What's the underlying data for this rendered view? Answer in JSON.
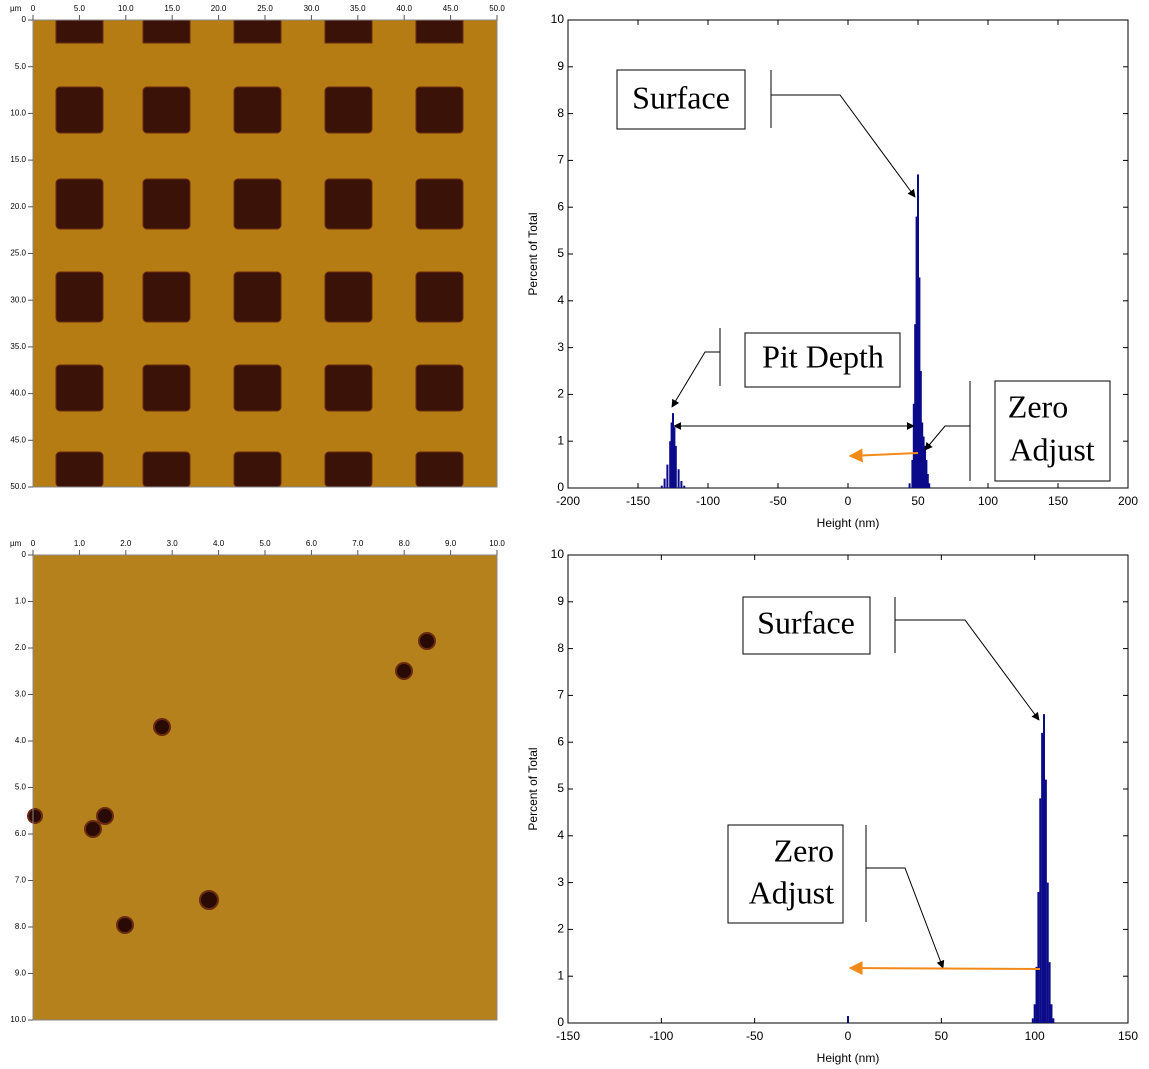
{
  "chart_data": [
    {
      "type": "image",
      "x_unit": "µm",
      "xlim": [
        0,
        50
      ],
      "ylim": [
        0,
        50
      ],
      "y_reversed": true,
      "xticks": [
        0,
        {
          "value": 5,
          "label": "5.0"
        },
        {
          "value": 10,
          "label": "10.0"
        },
        {
          "value": 15,
          "label": "15.0"
        },
        {
          "value": 20,
          "label": "20.0"
        },
        {
          "value": 25,
          "label": "25.0"
        },
        {
          "value": 30,
          "label": "30.0"
        },
        {
          "value": 35,
          "label": "35.0"
        },
        {
          "value": 40,
          "label": "40.0"
        },
        {
          "value": 45,
          "label": "45.0"
        },
        {
          "value": 50,
          "label": "50.0"
        }
      ],
      "yticks": [
        0,
        {
          "value": 5,
          "label": "5.0"
        },
        {
          "value": 10,
          "label": "10.0"
        },
        {
          "value": 15,
          "label": "15.0"
        },
        {
          "value": 20,
          "label": "20.0"
        },
        {
          "value": 25,
          "label": "25.0"
        },
        {
          "value": 30,
          "label": "30.0"
        },
        {
          "value": 35,
          "label": "35.0"
        },
        {
          "value": 40,
          "label": "40.0"
        },
        {
          "value": 45,
          "label": "45.0"
        },
        {
          "value": 50,
          "label": "50.0"
        }
      ]
    },
    {
      "type": "bar",
      "x_label": "Height (nm)",
      "y_label": "Percent of Total",
      "color": "#0b0b8a",
      "x": [
        -133,
        -131,
        -129,
        -127,
        -126,
        -125,
        -124,
        -123,
        -121,
        -119,
        -117,
        44,
        46,
        47,
        48,
        49,
        50,
        51,
        52,
        53,
        54,
        55,
        56,
        57,
        58
      ],
      "values": [
        0.05,
        0.2,
        0.5,
        1.0,
        1.4,
        1.6,
        1.3,
        0.9,
        0.4,
        0.15,
        0.05,
        0.1,
        0.6,
        1.8,
        3.5,
        5.8,
        6.7,
        4.5,
        2.5,
        1.4,
        1.1,
        0.9,
        0.6,
        0.3,
        0.1
      ],
      "xlim": [
        -200,
        200
      ],
      "xticks": [
        -200,
        -150,
        -100,
        -50,
        0,
        50,
        100,
        150,
        200
      ],
      "ylim": [
        0,
        10
      ],
      "yticks": [
        0,
        1,
        2,
        3,
        4,
        5,
        6,
        7,
        8,
        9,
        10
      ],
      "annotations": [
        "Surface",
        "Pit Depth",
        "Zero",
        "Adjust"
      ]
    },
    {
      "type": "image",
      "x_unit": "µm",
      "xlim": [
        0,
        10
      ],
      "ylim": [
        0,
        10
      ],
      "y_reversed": true,
      "xticks": [
        0,
        {
          "value": 1,
          "label": "1.0"
        },
        {
          "value": 2,
          "label": "2.0"
        },
        {
          "value": 3,
          "label": "3.0"
        },
        {
          "value": 4,
          "label": "4.0"
        },
        {
          "value": 5,
          "label": "5.0"
        },
        {
          "value": 6,
          "label": "6.0"
        },
        {
          "value": 7,
          "label": "7.0"
        },
        {
          "value": 8,
          "label": "8.0"
        },
        {
          "value": 9,
          "label": "9.0"
        },
        {
          "value": 10,
          "label": "10.0"
        }
      ],
      "yticks": [
        0,
        {
          "value": 1,
          "label": "1.0"
        },
        {
          "value": 2,
          "label": "2.0"
        },
        {
          "value": 3,
          "label": "3.0"
        },
        {
          "value": 4,
          "label": "4.0"
        },
        {
          "value": 5,
          "label": "5.0"
        },
        {
          "value": 6,
          "label": "6.0"
        },
        {
          "value": 7,
          "label": "7.0"
        },
        {
          "value": 8,
          "label": "8.0"
        },
        {
          "value": 9,
          "label": "9.0"
        },
        {
          "value": 10,
          "label": "10.0"
        }
      ]
    },
    {
      "type": "bar",
      "x_label": "Height (nm)",
      "y_label": "Percent of Total",
      "color": "#0b0b8a",
      "x": [
        0,
        99,
        100,
        101,
        102,
        103,
        104,
        105,
        106,
        107,
        108,
        109,
        110
      ],
      "values": [
        0.15,
        0.1,
        0.4,
        1.2,
        2.8,
        4.8,
        6.2,
        6.6,
        5.2,
        3.0,
        1.3,
        0.4,
        0.1
      ],
      "xlim": [
        -150,
        150
      ],
      "xticks": [
        -150,
        -100,
        -50,
        0,
        50,
        100,
        150
      ],
      "ylim": [
        0,
        10
      ],
      "yticks": [
        0,
        1,
        2,
        3,
        4,
        5,
        6,
        7,
        8,
        9,
        10
      ],
      "annotations": [
        "Surface",
        "Zero",
        "Adjust"
      ]
    }
  ]
}
